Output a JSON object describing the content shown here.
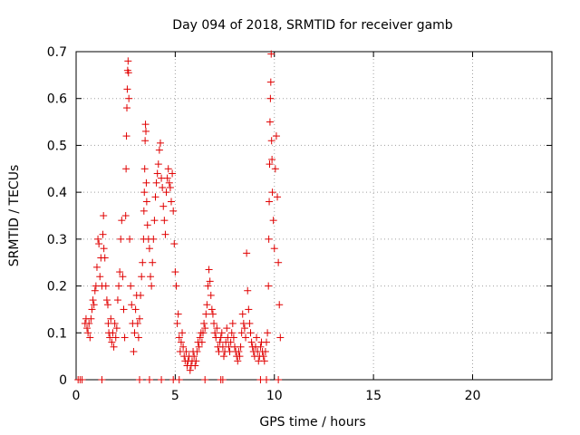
{
  "chart_data": {
    "type": "scatter",
    "title": "Day 094 of 2018, SRMTID for receiver gamb",
    "xlabel": "GPS time / hours",
    "ylabel": "SRMTID / TECUs",
    "xlim": [
      0,
      24
    ],
    "ylim": [
      0,
      0.7
    ],
    "xticks": [
      0,
      5,
      10,
      15,
      20
    ],
    "xtick_labels": [
      "0",
      "5",
      "10",
      "15",
      "20"
    ],
    "yticks": [
      0,
      0.1,
      0.2,
      0.3,
      0.4,
      0.5,
      0.6,
      0.7
    ],
    "ytick_labels": [
      "0",
      "0.1",
      "0.2",
      "0.3",
      "0.4",
      "0.5",
      "0.6",
      "0.7"
    ],
    "grid": true,
    "marker": "+",
    "color": "#e00000",
    "series": [
      {
        "name": "SRMTID",
        "points": [
          [
            0.1,
            0
          ],
          [
            0.2,
            0
          ],
          [
            0.3,
            0
          ],
          [
            1.3,
            0
          ],
          [
            3.2,
            0
          ],
          [
            3.7,
            0
          ],
          [
            4.3,
            0
          ],
          [
            4.9,
            0
          ],
          [
            5.2,
            0
          ],
          [
            6.5,
            0
          ],
          [
            7.3,
            0
          ],
          [
            7.4,
            0
          ],
          [
            9.3,
            0
          ],
          [
            9.6,
            0
          ],
          [
            10.2,
            0
          ],
          [
            0.45,
            0.12
          ],
          [
            0.5,
            0.13
          ],
          [
            0.55,
            0.11
          ],
          [
            0.6,
            0.1
          ],
          [
            0.65,
            0.12
          ],
          [
            0.7,
            0.09
          ],
          [
            0.75,
            0.13
          ],
          [
            0.8,
            0.15
          ],
          [
            0.85,
            0.17
          ],
          [
            0.9,
            0.16
          ],
          [
            0.95,
            0.19
          ],
          [
            1.0,
            0.2
          ],
          [
            1.05,
            0.24
          ],
          [
            1.1,
            0.3
          ],
          [
            1.15,
            0.29
          ],
          [
            1.2,
            0.22
          ],
          [
            1.25,
            0.26
          ],
          [
            1.3,
            0.2
          ],
          [
            1.35,
            0.31
          ],
          [
            1.38,
            0.35
          ],
          [
            1.4,
            0.28
          ],
          [
            1.45,
            0.26
          ],
          [
            1.5,
            0.2
          ],
          [
            1.55,
            0.17
          ],
          [
            1.6,
            0.16
          ],
          [
            1.62,
            0.12
          ],
          [
            1.65,
            0.1
          ],
          [
            1.7,
            0.09
          ],
          [
            1.75,
            0.13
          ],
          [
            1.8,
            0.08
          ],
          [
            1.85,
            0.1
          ],
          [
            1.9,
            0.07
          ],
          [
            1.95,
            0.12
          ],
          [
            2.0,
            0.09
          ],
          [
            2.05,
            0.11
          ],
          [
            2.1,
            0.17
          ],
          [
            2.15,
            0.2
          ],
          [
            2.2,
            0.23
          ],
          [
            2.25,
            0.3
          ],
          [
            2.3,
            0.34
          ],
          [
            2.35,
            0.22
          ],
          [
            2.4,
            0.15
          ],
          [
            2.45,
            0.09
          ],
          [
            2.5,
            0.35
          ],
          [
            2.52,
            0.45
          ],
          [
            2.54,
            0.52
          ],
          [
            2.56,
            0.58
          ],
          [
            2.58,
            0.62
          ],
          [
            2.6,
            0.66
          ],
          [
            2.62,
            0.68
          ],
          [
            2.64,
            0.655
          ],
          [
            2.66,
            0.6
          ],
          [
            2.7,
            0.3
          ],
          [
            2.75,
            0.2
          ],
          [
            2.8,
            0.16
          ],
          [
            2.85,
            0.12
          ],
          [
            2.9,
            0.06
          ],
          [
            2.95,
            0.1
          ],
          [
            3.0,
            0.15
          ],
          [
            3.05,
            0.18
          ],
          [
            3.1,
            0.12
          ],
          [
            3.15,
            0.09
          ],
          [
            3.2,
            0.13
          ],
          [
            3.25,
            0.18
          ],
          [
            3.3,
            0.22
          ],
          [
            3.35,
            0.25
          ],
          [
            3.4,
            0.3
          ],
          [
            3.42,
            0.36
          ],
          [
            3.44,
            0.4
          ],
          [
            3.46,
            0.45
          ],
          [
            3.48,
            0.51
          ],
          [
            3.5,
            0.545
          ],
          [
            3.52,
            0.53
          ],
          [
            3.54,
            0.42
          ],
          [
            3.56,
            0.38
          ],
          [
            3.6,
            0.33
          ],
          [
            3.65,
            0.3
          ],
          [
            3.7,
            0.28
          ],
          [
            3.75,
            0.22
          ],
          [
            3.8,
            0.2
          ],
          [
            3.85,
            0.25
          ],
          [
            3.9,
            0.3
          ],
          [
            3.95,
            0.34
          ],
          [
            4.0,
            0.39
          ],
          [
            4.05,
            0.42
          ],
          [
            4.1,
            0.44
          ],
          [
            4.15,
            0.46
          ],
          [
            4.2,
            0.49
          ],
          [
            4.25,
            0.505
          ],
          [
            4.3,
            0.43
          ],
          [
            4.35,
            0.41
          ],
          [
            4.4,
            0.37
          ],
          [
            4.45,
            0.34
          ],
          [
            4.5,
            0.31
          ],
          [
            4.55,
            0.4
          ],
          [
            4.6,
            0.43
          ],
          [
            4.65,
            0.45
          ],
          [
            4.7,
            0.42
          ],
          [
            4.75,
            0.41
          ],
          [
            4.8,
            0.38
          ],
          [
            4.85,
            0.44
          ],
          [
            4.9,
            0.36
          ],
          [
            4.95,
            0.29
          ],
          [
            5.0,
            0.23
          ],
          [
            5.05,
            0.2
          ],
          [
            5.1,
            0.12
          ],
          [
            5.15,
            0.14
          ],
          [
            5.2,
            0.09
          ],
          [
            5.25,
            0.06
          ],
          [
            5.3,
            0.08
          ],
          [
            5.35,
            0.1
          ],
          [
            5.4,
            0.07
          ],
          [
            5.45,
            0.05
          ],
          [
            5.5,
            0.04
          ],
          [
            5.55,
            0.06
          ],
          [
            5.6,
            0.03
          ],
          [
            5.65,
            0.04
          ],
          [
            5.7,
            0.05
          ],
          [
            5.75,
            0.02
          ],
          [
            5.8,
            0.03
          ],
          [
            5.85,
            0.04
          ],
          [
            5.9,
            0.06
          ],
          [
            5.95,
            0.05
          ],
          [
            6.0,
            0.03
          ],
          [
            6.05,
            0.04
          ],
          [
            6.1,
            0.06
          ],
          [
            6.15,
            0.08
          ],
          [
            6.2,
            0.07
          ],
          [
            6.25,
            0.09
          ],
          [
            6.3,
            0.1
          ],
          [
            6.35,
            0.08
          ],
          [
            6.4,
            0.1
          ],
          [
            6.45,
            0.12
          ],
          [
            6.5,
            0.11
          ],
          [
            6.55,
            0.14
          ],
          [
            6.6,
            0.16
          ],
          [
            6.65,
            0.2
          ],
          [
            6.7,
            0.235
          ],
          [
            6.75,
            0.21
          ],
          [
            6.8,
            0.18
          ],
          [
            6.85,
            0.15
          ],
          [
            6.9,
            0.14
          ],
          [
            6.95,
            0.12
          ],
          [
            7.0,
            0.1
          ],
          [
            7.05,
            0.09
          ],
          [
            7.1,
            0.11
          ],
          [
            7.15,
            0.07
          ],
          [
            7.2,
            0.06
          ],
          [
            7.25,
            0.08
          ],
          [
            7.3,
            0.09
          ],
          [
            7.35,
            0.1
          ],
          [
            7.4,
            0.07
          ],
          [
            7.45,
            0.05
          ],
          [
            7.5,
            0.06
          ],
          [
            7.55,
            0.08
          ],
          [
            7.6,
            0.11
          ],
          [
            7.65,
            0.09
          ],
          [
            7.7,
            0.07
          ],
          [
            7.75,
            0.06
          ],
          [
            7.8,
            0.08
          ],
          [
            7.85,
            0.1
          ],
          [
            7.9,
            0.12
          ],
          [
            7.95,
            0.09
          ],
          [
            8.0,
            0.07
          ],
          [
            8.05,
            0.06
          ],
          [
            8.1,
            0.05
          ],
          [
            8.15,
            0.04
          ],
          [
            8.2,
            0.06
          ],
          [
            8.25,
            0.05
          ],
          [
            8.3,
            0.07
          ],
          [
            8.35,
            0.1
          ],
          [
            8.4,
            0.14
          ],
          [
            8.45,
            0.12
          ],
          [
            8.5,
            0.11
          ],
          [
            8.55,
            0.09
          ],
          [
            8.6,
            0.27
          ],
          [
            8.65,
            0.19
          ],
          [
            8.7,
            0.15
          ],
          [
            8.75,
            0.12
          ],
          [
            8.8,
            0.1
          ],
          [
            8.85,
            0.08
          ],
          [
            8.9,
            0.07
          ],
          [
            8.95,
            0.06
          ],
          [
            9.0,
            0.05
          ],
          [
            9.05,
            0.07
          ],
          [
            9.1,
            0.09
          ],
          [
            9.15,
            0.06
          ],
          [
            9.2,
            0.04
          ],
          [
            9.25,
            0.05
          ],
          [
            9.3,
            0.07
          ],
          [
            9.35,
            0.08
          ],
          [
            9.4,
            0.06
          ],
          [
            9.45,
            0.05
          ],
          [
            9.5,
            0.04
          ],
          [
            9.55,
            0.06
          ],
          [
            9.6,
            0.08
          ],
          [
            9.65,
            0.1
          ],
          [
            9.7,
            0.2
          ],
          [
            9.72,
            0.3
          ],
          [
            9.74,
            0.38
          ],
          [
            9.76,
            0.46
          ],
          [
            9.78,
            0.55
          ],
          [
            9.8,
            0.6
          ],
          [
            9.82,
            0.635
          ],
          [
            9.84,
            0.695
          ],
          [
            9.86,
            0.51
          ],
          [
            9.88,
            0.47
          ],
          [
            9.9,
            0.4
          ],
          [
            9.95,
            0.34
          ],
          [
            10.0,
            0.28
          ],
          [
            10.05,
            0.45
          ],
          [
            10.1,
            0.52
          ],
          [
            10.15,
            0.39
          ],
          [
            10.2,
            0.25
          ],
          [
            10.25,
            0.16
          ],
          [
            10.3,
            0.09
          ]
        ]
      }
    ]
  }
}
